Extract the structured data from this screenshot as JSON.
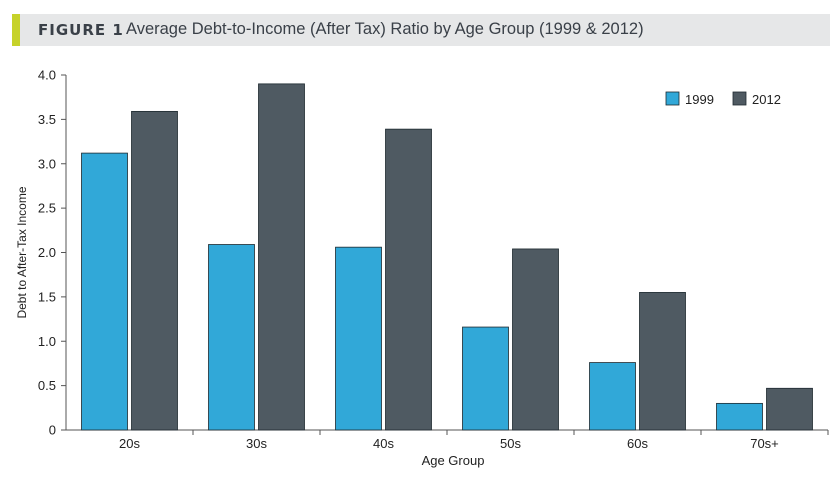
{
  "header": {
    "figure_label": "FIGURE 1",
    "title": "Average Debt-to-Income (After Tax) Ratio by Age Group (1999 & 2012)"
  },
  "chart_data": {
    "type": "bar",
    "categories": [
      "20s",
      "30s",
      "40s",
      "50s",
      "60s",
      "70s+"
    ],
    "series": [
      {
        "name": "1999",
        "values": [
          3.12,
          2.09,
          2.06,
          1.16,
          0.76,
          0.3
        ],
        "color": "#31a8d8"
      },
      {
        "name": "2012",
        "values": [
          3.59,
          3.9,
          3.39,
          2.04,
          1.55,
          0.47
        ],
        "color": "#4f5a62"
      }
    ],
    "xlabel": "Age Group",
    "ylabel": "Debt to After-Tax Income",
    "ylim": [
      0,
      4.0
    ],
    "yticks": [
      "0",
      "0.5",
      "1.0",
      "1.5",
      "2.0",
      "2.5",
      "3.0",
      "3.5",
      "4.0"
    ],
    "legend_position": "top-right",
    "grid": false
  }
}
